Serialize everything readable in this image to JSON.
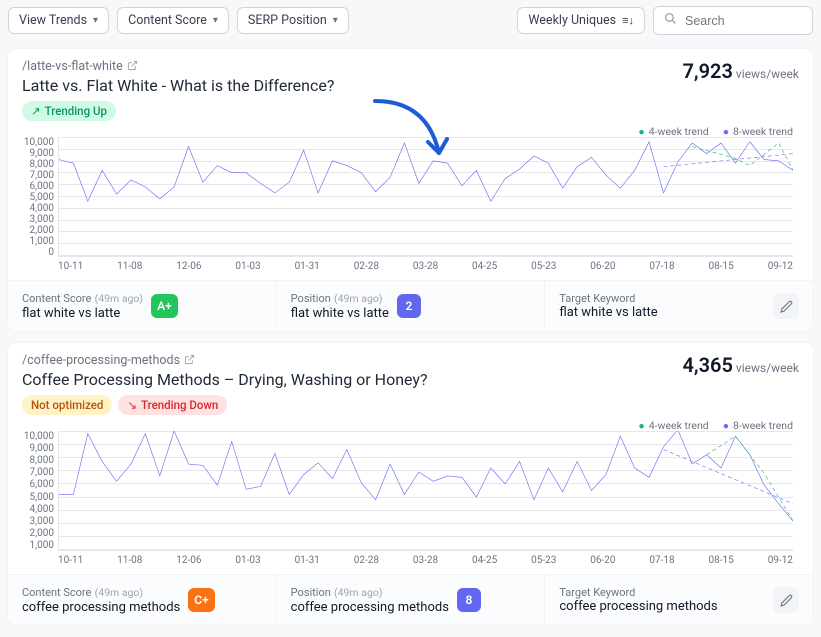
{
  "toolbar": {
    "dropdowns": [
      "View Trends",
      "Content Score",
      "SERP Position"
    ],
    "weekly": "Weekly Uniques",
    "search_placeholder": "Search"
  },
  "cards": [
    {
      "slug": "/latte-vs-flat-white",
      "title": "Latte vs. Flat White - What is the Difference?",
      "views_num": "7,923",
      "views_lbl": "views/week",
      "badges": [
        {
          "text": "Trending Up",
          "cls": "badge-green",
          "icon": "↗"
        }
      ],
      "legend": {
        "a": "4-week trend",
        "b": "8-week trend"
      },
      "chart": {
        "y_ticks": [
          "10,000",
          "9,000",
          "8,000",
          "7,000",
          "6,000",
          "5,000",
          "4,000",
          "3,000",
          "2,000",
          "1,000",
          "0"
        ],
        "x_ticks": [
          "10-11",
          "11-08",
          "12-06",
          "01-03",
          "01-31",
          "02-28",
          "03-28",
          "04-25",
          "05-23",
          "06-20",
          "07-18",
          "08-15",
          "09-12"
        ],
        "ylim": [
          0,
          10000
        ],
        "line_color": "#6366f1",
        "values": [
          8100,
          7800,
          4600,
          7200,
          5200,
          6400,
          5800,
          4800,
          5800,
          9200,
          6200,
          7600,
          7000,
          7000,
          6100,
          5300,
          6200,
          8900,
          5300,
          8000,
          7600,
          7000,
          5400,
          6600,
          9500,
          6100,
          8000,
          7800,
          5900,
          7200,
          4600,
          6500,
          7300,
          8400,
          7800,
          5700,
          7500,
          8300,
          6800,
          5700,
          7200,
          9600,
          5300,
          7900,
          9500,
          8600,
          9500,
          7800,
          9600,
          8100,
          8000,
          7200
        ],
        "trend4": {
          "color": "#10b981",
          "dash": "4 3",
          "points": [
            [
              44,
              9200
            ],
            [
              47,
              8200
            ],
            [
              48,
              7600
            ],
            [
              50,
              9500
            ],
            [
              51,
              7200
            ]
          ]
        },
        "trend8": {
          "color": "#8b5cf6",
          "dash": "4 3",
          "points": [
            [
              42,
              7500
            ],
            [
              51,
              8600
            ]
          ]
        }
      },
      "footer": {
        "score_label": "Content Score",
        "score_age": "(49m ago)",
        "score_value": "flat white vs latte",
        "score_pill": "A+",
        "score_pill_cls": "pill-green",
        "pos_label": "Position",
        "pos_age": "(49m ago)",
        "pos_value": "flat white vs latte",
        "pos_pill": "2",
        "pos_pill_cls": "pill-blue",
        "kw_label": "Target Keyword",
        "kw_value": "flat white vs latte"
      }
    },
    {
      "slug": "/coffee-processing-methods",
      "title": "Coffee Processing Methods – Drying, Washing or Honey?",
      "views_num": "4,365",
      "views_lbl": "views/week",
      "badges": [
        {
          "text": "Not optimized",
          "cls": "badge-yellow",
          "icon": ""
        },
        {
          "text": "Trending Down",
          "cls": "badge-red",
          "icon": "↘"
        }
      ],
      "legend": {
        "a": "4-week trend",
        "b": "8-week trend"
      },
      "chart": {
        "y_ticks": [
          "10,000",
          "9,000",
          "8,000",
          "7,000",
          "6,000",
          "5,000",
          "4,000",
          "3,000",
          "2,000",
          "1,000"
        ],
        "x_ticks": [
          "10-11",
          "11-08",
          "12-06",
          "01-03",
          "01-31",
          "02-28",
          "03-28",
          "04-25",
          "05-23",
          "06-20",
          "07-18",
          "08-15",
          "09-12"
        ],
        "ylim": [
          1000,
          10000
        ],
        "line_color": "#6366f1",
        "values": [
          5200,
          5200,
          9800,
          7700,
          6200,
          7500,
          9800,
          6600,
          10000,
          7500,
          7400,
          5900,
          9200,
          5600,
          5800,
          8300,
          5200,
          6700,
          7600,
          6400,
          8600,
          6100,
          4800,
          7500,
          5200,
          6900,
          6200,
          6600,
          6500,
          5000,
          7200,
          6000,
          7700,
          4800,
          7200,
          5400,
          7700,
          5500,
          6700,
          9600,
          7200,
          6500,
          8800,
          10100,
          7500,
          8200,
          7200,
          9600,
          8200,
          5900,
          4500,
          3200
        ],
        "trend4": {
          "color": "#10b981",
          "dash": "4 3",
          "points": [
            [
              45,
              8200
            ],
            [
              47,
              9600
            ],
            [
              49,
              6800
            ],
            [
              51,
              3200
            ]
          ]
        },
        "trend8": {
          "color": "#8b5cf6",
          "dash": "4 3",
          "points": [
            [
              42,
              8600
            ],
            [
              51,
              4500
            ]
          ]
        }
      },
      "footer": {
        "score_label": "Content Score",
        "score_age": "(49m ago)",
        "score_value": "coffee processing methods",
        "score_pill": "C+",
        "score_pill_cls": "pill-orange",
        "pos_label": "Position",
        "pos_age": "(49m ago)",
        "pos_value": "coffee processing methods",
        "pos_pill": "8",
        "pos_pill_cls": "pill-blue",
        "kw_label": "Target Keyword",
        "kw_value": "coffee processing methods"
      }
    }
  ],
  "arrow_color": "#1e5cd6"
}
